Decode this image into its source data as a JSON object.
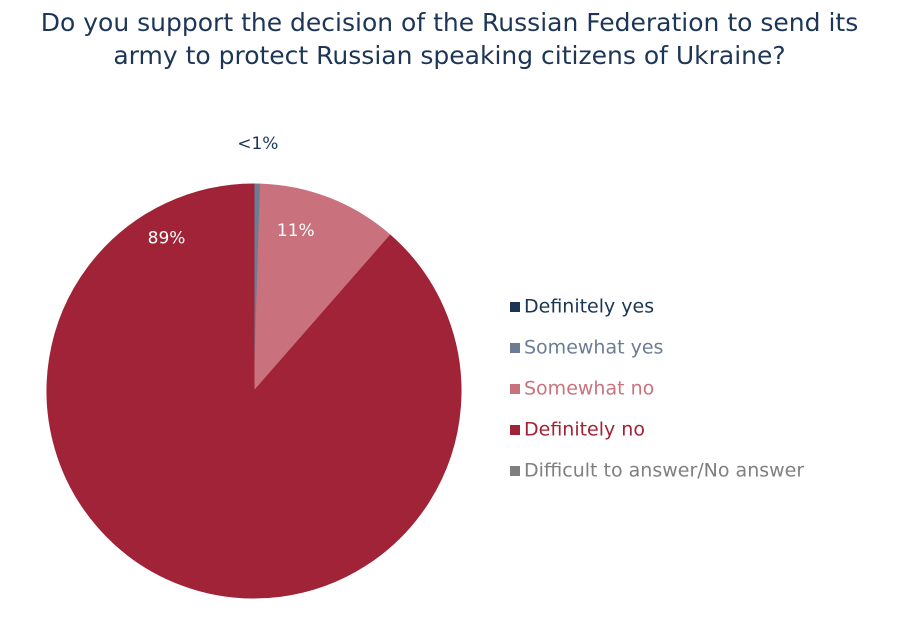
{
  "chart_data": {
    "type": "pie",
    "title": "Do you support the decision of the Russian Federation to send its army to protect Russian speaking citizens of Ukraine?",
    "categories": [
      "Definitely yes",
      "Somewhat yes",
      "Somewhat no",
      "Definitely no",
      "Difficult to answer/No answer"
    ],
    "values": [
      0,
      0.5,
      11,
      89,
      0
    ],
    "value_labels": [
      null,
      "<1%",
      "11%",
      "89%",
      null
    ],
    "colors": [
      "#1a3553",
      "#6c7d93",
      "#c9727e",
      "#a02337",
      "#7f7f7f"
    ],
    "legend": "right"
  }
}
